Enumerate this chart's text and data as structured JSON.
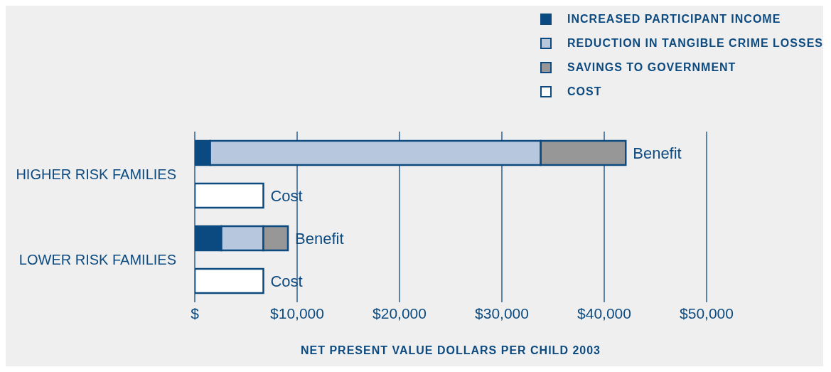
{
  "chart_data": {
    "type": "bar",
    "orientation": "horizontal",
    "stacked": true,
    "xlabel": "NET PRESENT VALUE DOLLARS PER CHILD 2003",
    "categories": [
      "HIGHER RISK FAMILIES",
      null,
      "LOWER RISK FAMILIES",
      null
    ],
    "series": [
      {
        "name": "INCREASED PARTICIPANT INCOME",
        "color": "#0b4a80",
        "values": [
          1500,
          null,
          2600,
          null
        ]
      },
      {
        "name": "REDUCTION IN TANGIBLE CRIME LOSSES",
        "color": "#b7c7de",
        "values": [
          32300,
          null,
          4100,
          null
        ]
      },
      {
        "name": "SAVINGS TO GOVERNMENT",
        "color": "#979797",
        "values": [
          8300,
          null,
          2400,
          null
        ]
      },
      {
        "name": "COST",
        "color": "#ffffff",
        "values": [
          null,
          6700,
          null,
          6700
        ]
      }
    ],
    "xlim": [
      0,
      50000
    ],
    "xticks": [
      {
        "value": 0,
        "label": "$"
      },
      {
        "value": 10000,
        "label": "$10,000"
      },
      {
        "value": 20000,
        "label": "$20,000"
      },
      {
        "value": 30000,
        "label": "$30,000"
      },
      {
        "value": 40000,
        "label": "$40,000"
      },
      {
        "value": 50000,
        "label": "$50,000"
      }
    ],
    "annotations": [
      {
        "text": "Benefit",
        "x": 42100
      },
      {
        "text": "Cost",
        "x": 6700
      },
      {
        "text": "Benefit",
        "x": 9100
      },
      {
        "text": "Cost",
        "x": 6700
      }
    ],
    "grid": "x",
    "legend": "top right"
  }
}
